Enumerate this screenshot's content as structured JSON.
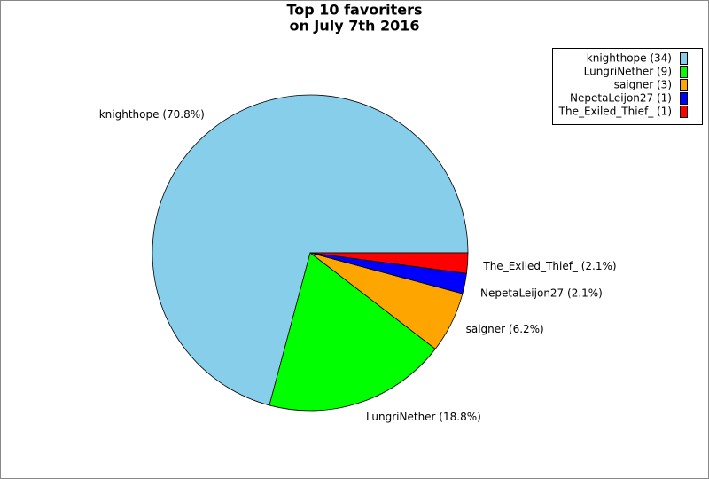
{
  "chart_data": {
    "type": "pie",
    "title": "Top 10 favoriters",
    "subtitle": "on July 7th 2016",
    "categories": [
      "knighthope (34)",
      "LungriNether (9)",
      "saigner (3)",
      "NepetaLeijon27 (1)",
      "The_Exiled_Thief_ (1)"
    ],
    "values": [
      34,
      9,
      3,
      1,
      1
    ],
    "value_labels": [
      "knighthope (70.8%)",
      "LungriNether (18.8%)",
      "saigner (6.2%)",
      "NepetaLeijon27 (2.1%)",
      "The_Exiled_Thief_ (2.1%)"
    ],
    "colors": [
      "#87ceeb",
      "#00ff00",
      "#ffa500",
      "#0000ff",
      "#ff0000"
    ],
    "legend": "upper right"
  }
}
